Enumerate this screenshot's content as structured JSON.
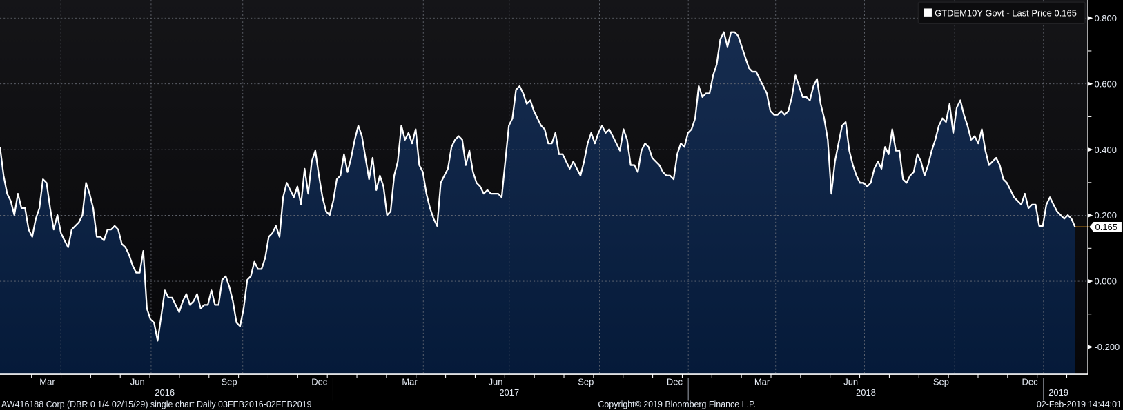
{
  "chart_data": {
    "type": "area",
    "title": "",
    "series": [
      {
        "name": "GTDEM10Y Govt - Last Price",
        "last_value_label": "0.165",
        "color": "#ffffff",
        "fill_top": "#14294b",
        "fill_bottom": "#061b3b",
        "values": [
          0.408,
          0.321,
          0.266,
          0.244,
          0.201,
          0.266,
          0.222,
          0.222,
          0.157,
          0.135,
          0.19,
          0.222,
          0.31,
          0.299,
          0.222,
          0.157,
          0.201,
          0.146,
          0.124,
          0.103,
          0.157,
          0.168,
          0.179,
          0.201,
          0.299,
          0.266,
          0.222,
          0.135,
          0.135,
          0.124,
          0.157,
          0.157,
          0.168,
          0.157,
          0.113,
          0.103,
          0.081,
          0.048,
          0.026,
          0.026,
          0.092,
          -0.083,
          -0.116,
          -0.126,
          -0.181,
          -0.105,
          -0.028,
          -0.05,
          -0.05,
          -0.072,
          -0.094,
          -0.061,
          -0.039,
          -0.072,
          -0.061,
          -0.039,
          -0.083,
          -0.072,
          -0.072,
          -0.028,
          -0.072,
          -0.072,
          0.004,
          0.015,
          -0.017,
          -0.061,
          -0.126,
          -0.137,
          -0.083,
          0.004,
          0.015,
          0.059,
          0.037,
          0.037,
          0.07,
          0.135,
          0.146,
          0.168,
          0.135,
          0.255,
          0.299,
          0.277,
          0.255,
          0.288,
          0.233,
          0.342,
          0.266,
          0.364,
          0.397,
          0.321,
          0.255,
          0.212,
          0.201,
          0.244,
          0.31,
          0.321,
          0.386,
          0.332,
          0.375,
          0.43,
          0.473,
          0.441,
          0.375,
          0.31,
          0.375,
          0.277,
          0.321,
          0.288,
          0.201,
          0.212,
          0.321,
          0.364,
          0.473,
          0.43,
          0.451,
          0.419,
          0.462,
          0.353,
          0.332,
          0.266,
          0.222,
          0.19,
          0.168,
          0.299,
          0.321,
          0.342,
          0.408,
          0.43,
          0.441,
          0.43,
          0.353,
          0.397,
          0.332,
          0.299,
          0.288,
          0.266,
          0.277,
          0.266,
          0.266,
          0.266,
          0.255,
          0.364,
          0.473,
          0.495,
          0.582,
          0.593,
          0.571,
          0.539,
          0.55,
          0.517,
          0.495,
          0.473,
          0.462,
          0.419,
          0.419,
          0.451,
          0.386,
          0.386,
          0.364,
          0.342,
          0.364,
          0.342,
          0.321,
          0.364,
          0.419,
          0.451,
          0.419,
          0.451,
          0.473,
          0.451,
          0.462,
          0.441,
          0.419,
          0.397,
          0.462,
          0.43,
          0.353,
          0.353,
          0.332,
          0.397,
          0.419,
          0.408,
          0.375,
          0.364,
          0.353,
          0.332,
          0.321,
          0.321,
          0.31,
          0.386,
          0.419,
          0.408,
          0.451,
          0.462,
          0.495,
          0.593,
          0.56,
          0.571,
          0.571,
          0.626,
          0.659,
          0.735,
          0.757,
          0.713,
          0.757,
          0.757,
          0.746,
          0.713,
          0.68,
          0.648,
          0.637,
          0.637,
          0.615,
          0.593,
          0.571,
          0.517,
          0.506,
          0.506,
          0.517,
          0.506,
          0.517,
          0.56,
          0.626,
          0.593,
          0.56,
          0.56,
          0.55,
          0.593,
          0.615,
          0.539,
          0.495,
          0.43,
          0.266,
          0.364,
          0.419,
          0.473,
          0.484,
          0.397,
          0.353,
          0.321,
          0.299,
          0.299,
          0.288,
          0.299,
          0.342,
          0.364,
          0.342,
          0.408,
          0.386,
          0.462,
          0.397,
          0.397,
          0.31,
          0.299,
          0.321,
          0.332,
          0.386,
          0.364,
          0.321,
          0.353,
          0.397,
          0.43,
          0.473,
          0.495,
          0.484,
          0.539,
          0.451,
          0.528,
          0.55,
          0.506,
          0.473,
          0.43,
          0.441,
          0.419,
          0.462,
          0.397,
          0.353,
          0.364,
          0.375,
          0.353,
          0.31,
          0.299,
          0.277,
          0.255,
          0.244,
          0.233,
          0.266,
          0.222,
          0.233,
          0.233,
          0.168,
          0.168,
          0.233,
          0.255,
          0.233,
          0.212,
          0.201,
          0.19,
          0.201,
          0.19,
          0.165
        ]
      }
    ],
    "x_range": [
      "03FEB2016",
      "02FEB2019"
    ],
    "ylim": [
      -0.283,
      0.855
    ],
    "y_ticks": [
      "0.800",
      "0.600",
      "0.400",
      "0.200",
      "0.000",
      "-0.200"
    ],
    "y_tick_values": [
      0.8,
      0.6,
      0.4,
      0.2,
      0.0,
      -0.2
    ],
    "x_month_labels": [
      "Mar",
      "Jun",
      "Sep",
      "Dec",
      "Mar",
      "Jun",
      "Sep",
      "Dec",
      "Mar",
      "Jun",
      "Sep",
      "Dec"
    ],
    "x_year_labels": [
      "2016",
      "2017",
      "2018",
      "2019"
    ],
    "grid": true,
    "legend_position": "top-right",
    "last_price_color": "#f39c12"
  },
  "legend": {
    "label": "GTDEM10Y Govt - Last Price",
    "value": "0.165"
  },
  "footer": {
    "left": "AW416188 Corp (DBR 0 1/4 02/15/29) single chart  Daily 03FEB2016-02FEB2019",
    "center": "Copyright© 2019 Bloomberg Finance L.P.",
    "right": "02-Feb-2019 14:44:01"
  }
}
